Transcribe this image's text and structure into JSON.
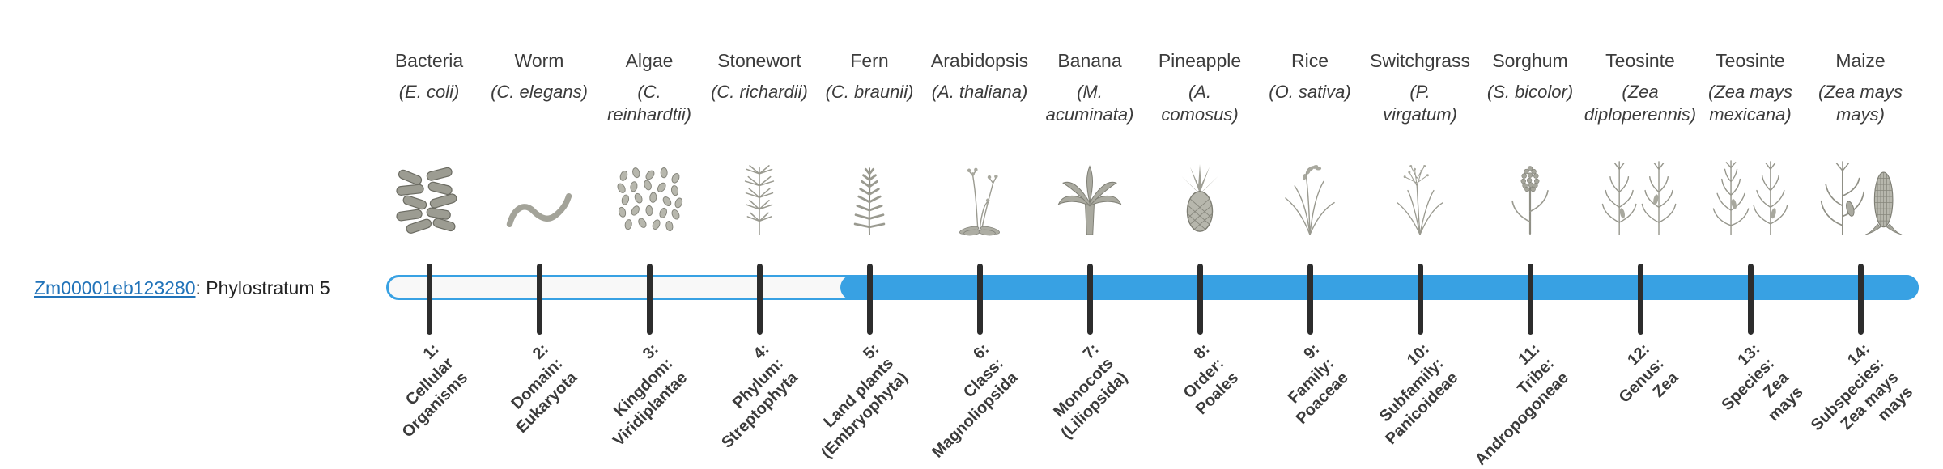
{
  "gene": {
    "id": "Zm00001eb123280",
    "label_suffix": ": Phylostratum 5",
    "phylostratum": 5
  },
  "colors": {
    "bar_fill": "#38a1e3",
    "bar_track": "#f8f8f8",
    "tick": "#2d2d2d",
    "link": "#2173b9"
  },
  "organisms": [
    {
      "common": "Bacteria",
      "sci": "(E. coli)",
      "icon": "bacteria-icon"
    },
    {
      "common": "Worm",
      "sci": "(C. elegans)",
      "icon": "worm-icon"
    },
    {
      "common": "Algae",
      "sci": "(C.\nreinhardtii)",
      "icon": "algae-icon"
    },
    {
      "common": "Stonewort",
      "sci": "(C. richardii)",
      "icon": "stonewort-icon"
    },
    {
      "common": "Fern",
      "sci": "(C. braunii)",
      "icon": "fern-icon"
    },
    {
      "common": "Arabidopsis",
      "sci": "(A. thaliana)",
      "icon": "arabidopsis-icon"
    },
    {
      "common": "Banana",
      "sci": "(M.\nacuminata)",
      "icon": "banana-icon"
    },
    {
      "common": "Pineapple",
      "sci": "(A.\ncomosus)",
      "icon": "pineapple-icon"
    },
    {
      "common": "Rice",
      "sci": "(O. sativa)",
      "icon": "rice-icon"
    },
    {
      "common": "Switchgrass",
      "sci": "(P.\nvirgatum)",
      "icon": "switchgrass-icon"
    },
    {
      "common": "Sorghum",
      "sci": "(S. bicolor)",
      "icon": "sorghum-icon"
    },
    {
      "common": "Teosinte",
      "sci": "(Zea\ndiploperennis)",
      "icon": "teosinte-diploperennis-icon"
    },
    {
      "common": "Teosinte",
      "sci": "(Zea mays\nmexicana)",
      "icon": "teosinte-mexicana-icon"
    },
    {
      "common": "Maize",
      "sci": "(Zea mays\nmays)",
      "icon": "maize-icon"
    }
  ],
  "strata": [
    {
      "label": "1:\nCellular\nOrganisms"
    },
    {
      "label": "2:\nDomain:\nEukaryota"
    },
    {
      "label": "3:\nKingdom:\nViridiplantae"
    },
    {
      "label": "4:\nPhylum:\nStreptophyta"
    },
    {
      "label": "5:\nLand plants\n(Embryophyta)"
    },
    {
      "label": "6:\nClass:\nMagnoliopsida"
    },
    {
      "label": "7:\nMonocots\n(Liliopsida)"
    },
    {
      "label": "8:\nOrder:\nPoales"
    },
    {
      "label": "9:\nFamily:\nPoaceae"
    },
    {
      "label": "10:\nSubfamily:\nPanicoideae"
    },
    {
      "label": "11:\nTribe:\nAndropogoneae"
    },
    {
      "label": "12:\nGenus:\nZea"
    },
    {
      "label": "13:\nSpecies:\nZea\nmays"
    },
    {
      "label": "14:\nSubspecies:\nZea mays\nmays"
    }
  ]
}
